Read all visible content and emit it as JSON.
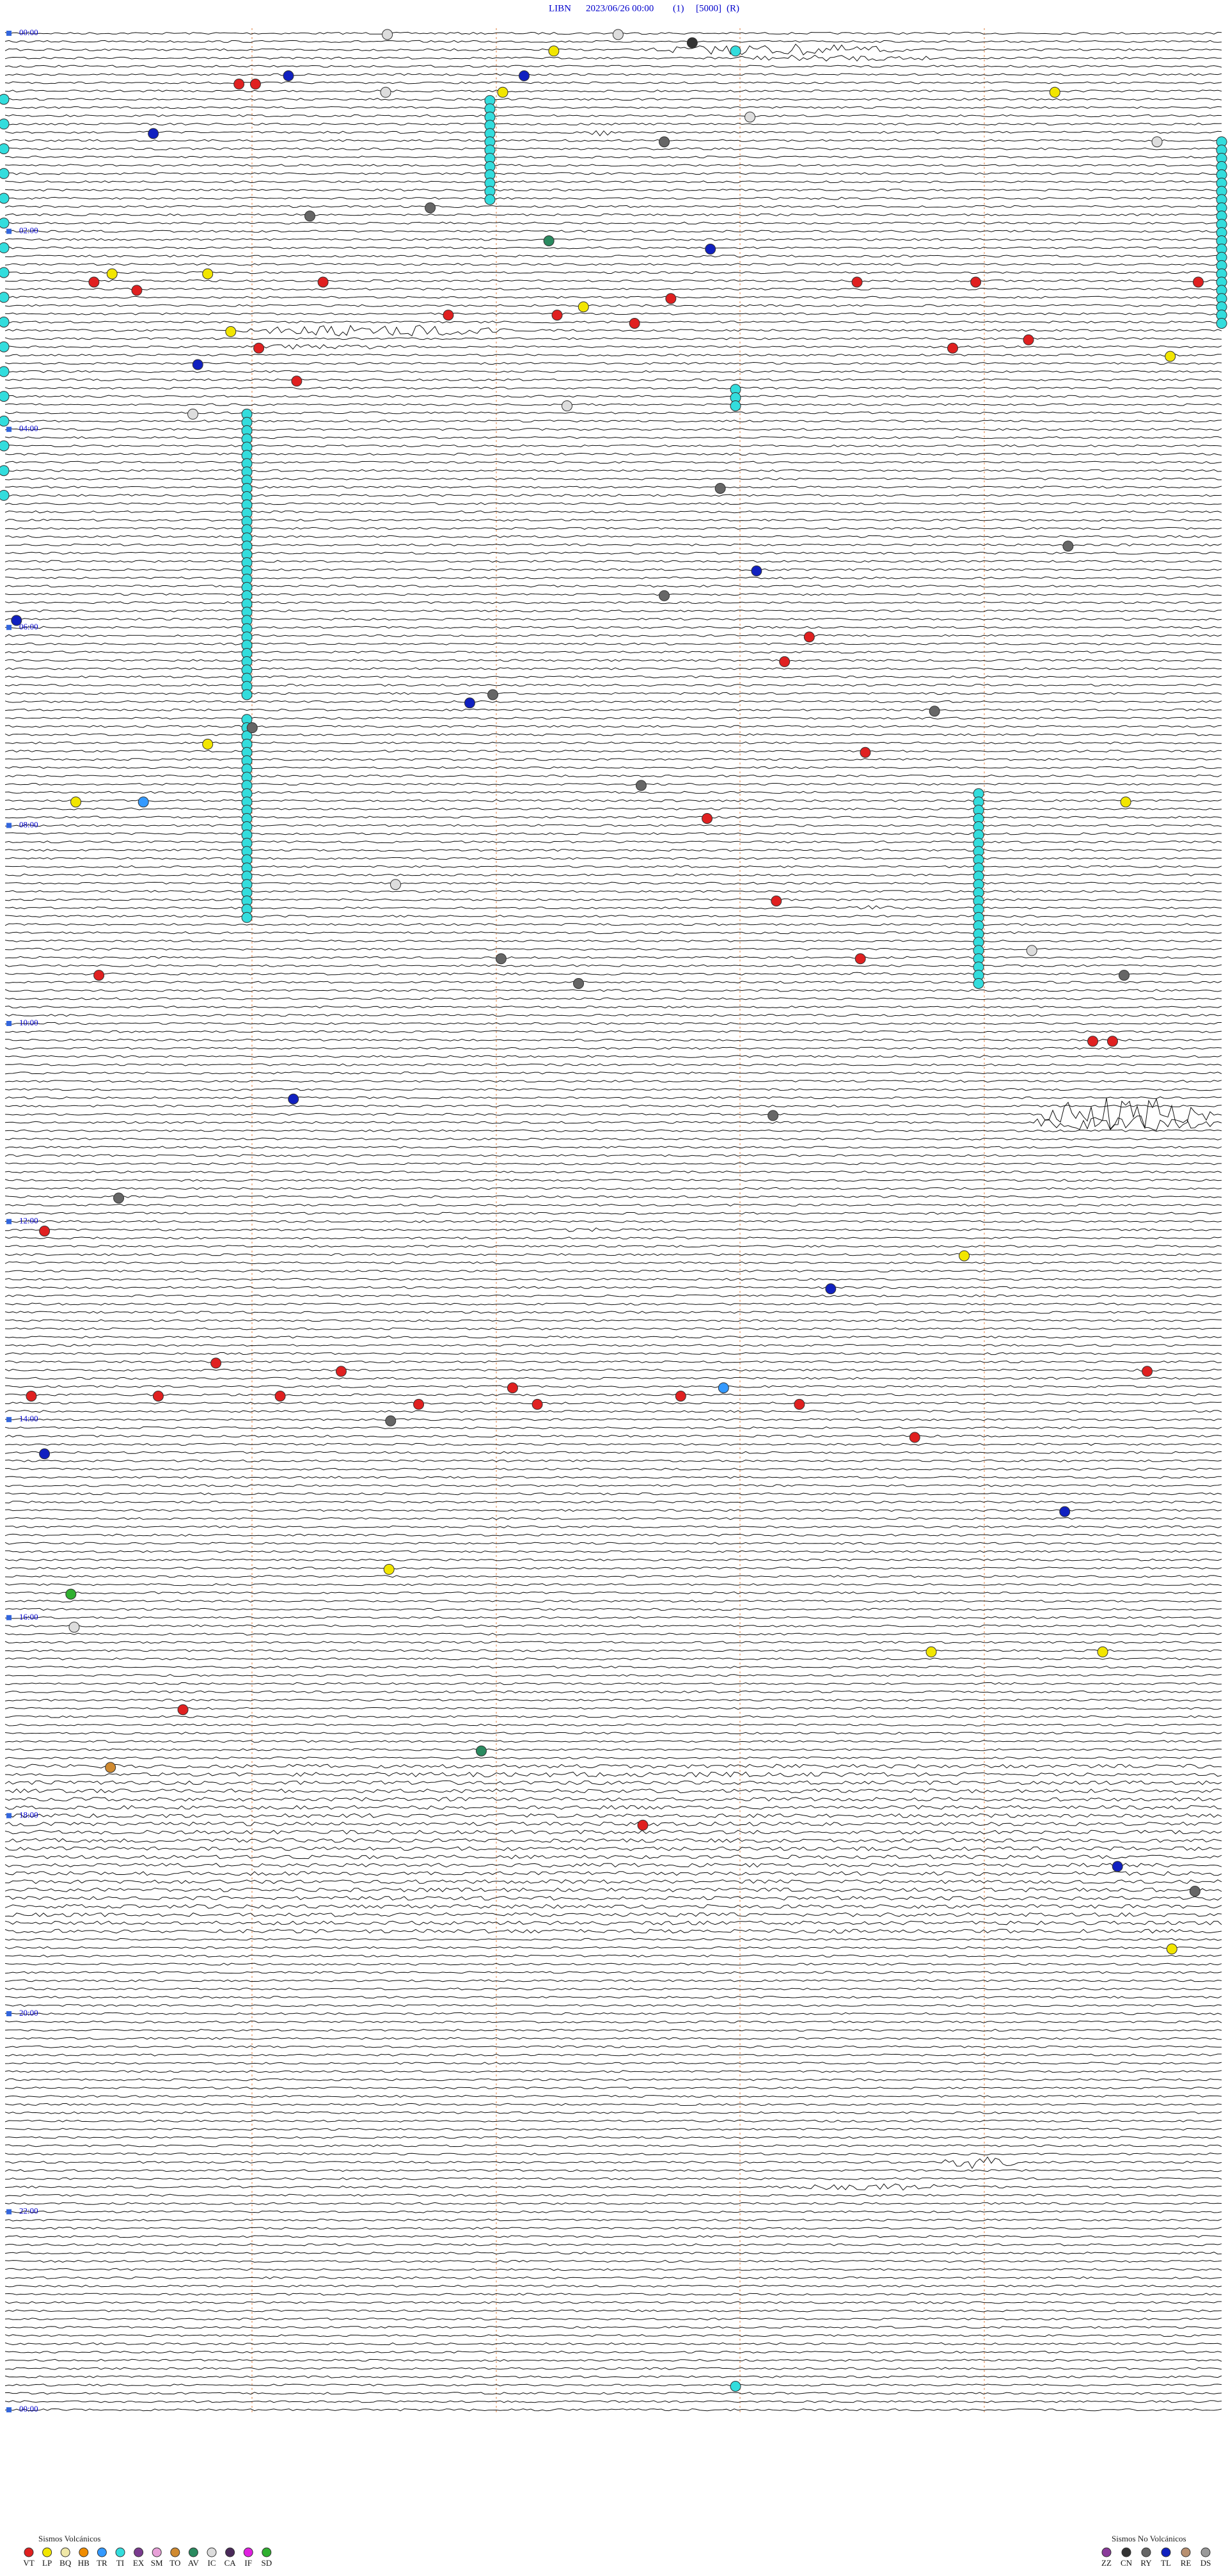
{
  "header": {
    "station": "LIBN",
    "datetime": "2023/06/26 00:00",
    "component": "(1)",
    "scale": "[5000]",
    "mode": "(R)"
  },
  "time_labels": [
    "00:00",
    "02:00",
    "04:00",
    "06:00",
    "08:00",
    "10:00",
    "12:00",
    "14:00",
    "16:00",
    "18:00",
    "20:00",
    "22:00",
    "00:00"
  ],
  "legend": {
    "volcanic": {
      "title": "Sismos Volcánicos",
      "types": [
        {
          "code": "VT",
          "color": "#e02020"
        },
        {
          "code": "LP",
          "color": "#f2e600"
        },
        {
          "code": "BQ",
          "color": "#f0e8a8"
        },
        {
          "code": "HB",
          "color": "#f08c00"
        },
        {
          "code": "TR",
          "color": "#3399ff"
        },
        {
          "code": "TI",
          "color": "#33dddd"
        },
        {
          "code": "EX",
          "color": "#7a3b8f"
        },
        {
          "code": "SM",
          "color": "#e8a0d8"
        },
        {
          "code": "TO",
          "color": "#d08a30"
        },
        {
          "code": "AV",
          "color": "#2a8a60"
        },
        {
          "code": "IC",
          "color": "#dddddd"
        },
        {
          "code": "CA",
          "color": "#4a2a5a"
        },
        {
          "code": "IF",
          "color": "#e020e0"
        },
        {
          "code": "SD",
          "color": "#30b030"
        }
      ]
    },
    "non_volcanic": {
      "title": "Sismos No Volcánicos",
      "types": [
        {
          "code": "ZZ",
          "color": "#8a3a9a"
        },
        {
          "code": "CN",
          "color": "#333333"
        },
        {
          "code": "RY",
          "color": "#666666"
        },
        {
          "code": "TL",
          "color": "#1020c0"
        },
        {
          "code": "RE",
          "color": "#b89070"
        },
        {
          "code": "DS",
          "color": "#999999"
        }
      ]
    }
  }
}
